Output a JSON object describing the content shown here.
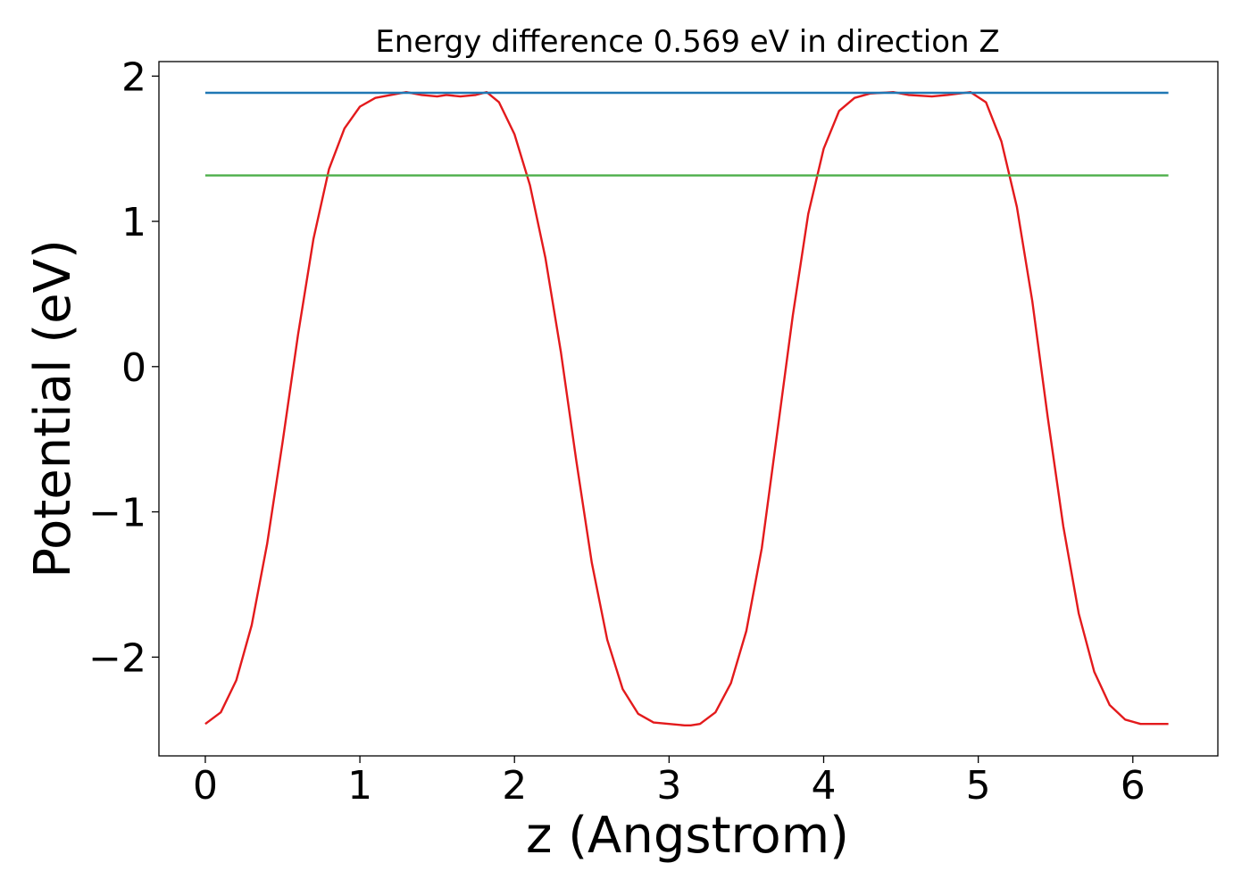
{
  "chart_data": {
    "type": "line",
    "title": "Energy difference 0.569 eV in direction Z",
    "xlabel": "z (Angstrom)",
    "ylabel": "Potential (eV)",
    "xlim": [
      -0.3,
      6.55
    ],
    "ylim": [
      -2.68,
      2.1
    ],
    "xticks": [
      {
        "value": 0,
        "label": "0"
      },
      {
        "value": 1,
        "label": "1"
      },
      {
        "value": 2,
        "label": "2"
      },
      {
        "value": 3,
        "label": "3"
      },
      {
        "value": 4,
        "label": "4"
      },
      {
        "value": 5,
        "label": "5"
      },
      {
        "value": 6,
        "label": "6"
      }
    ],
    "yticks": [
      {
        "value": -2,
        "label": "−2"
      },
      {
        "value": -1,
        "label": "−1"
      },
      {
        "value": 0,
        "label": "0"
      },
      {
        "value": 1,
        "label": "1"
      },
      {
        "value": 2,
        "label": "2"
      }
    ],
    "grid": false,
    "series": [
      {
        "color": "#e31a1c",
        "x": [
          0.0,
          0.1,
          0.2,
          0.3,
          0.4,
          0.5,
          0.6,
          0.7,
          0.8,
          0.9,
          1.0,
          1.1,
          1.2,
          1.3,
          1.4,
          1.5,
          1.56,
          1.65,
          1.75,
          1.82,
          1.9,
          2.0,
          2.1,
          2.2,
          2.3,
          2.4,
          2.5,
          2.6,
          2.7,
          2.8,
          2.9,
          3.0,
          3.1,
          3.14,
          3.2,
          3.3,
          3.4,
          3.5,
          3.6,
          3.7,
          3.8,
          3.9,
          4.0,
          4.1,
          4.2,
          4.3,
          4.45,
          4.55,
          4.7,
          4.8,
          4.95,
          5.05,
          5.15,
          5.25,
          5.35,
          5.45,
          5.55,
          5.65,
          5.75,
          5.85,
          5.95,
          6.05,
          6.15,
          6.23
        ],
        "y": [
          -2.46,
          -2.38,
          -2.16,
          -1.78,
          -1.22,
          -0.52,
          0.22,
          0.88,
          1.36,
          1.64,
          1.79,
          1.85,
          1.87,
          1.89,
          1.87,
          1.86,
          1.87,
          1.86,
          1.87,
          1.89,
          1.82,
          1.6,
          1.25,
          0.75,
          0.1,
          -0.65,
          -1.35,
          -1.88,
          -2.22,
          -2.39,
          -2.45,
          -2.46,
          -2.47,
          -2.47,
          -2.46,
          -2.38,
          -2.18,
          -1.82,
          -1.25,
          -0.45,
          0.35,
          1.05,
          1.5,
          1.76,
          1.85,
          1.88,
          1.89,
          1.87,
          1.86,
          1.87,
          1.89,
          1.82,
          1.55,
          1.1,
          0.45,
          -0.35,
          -1.1,
          -1.7,
          -2.1,
          -2.33,
          -2.43,
          -2.46,
          -2.46,
          -2.46
        ]
      },
      {
        "color": "#1f77b4",
        "x": [
          0.0,
          6.23
        ],
        "y": [
          1.885,
          1.885
        ]
      },
      {
        "color": "#4daf4a",
        "x": [
          0.0,
          6.23
        ],
        "y": [
          1.316,
          1.316
        ]
      }
    ]
  }
}
